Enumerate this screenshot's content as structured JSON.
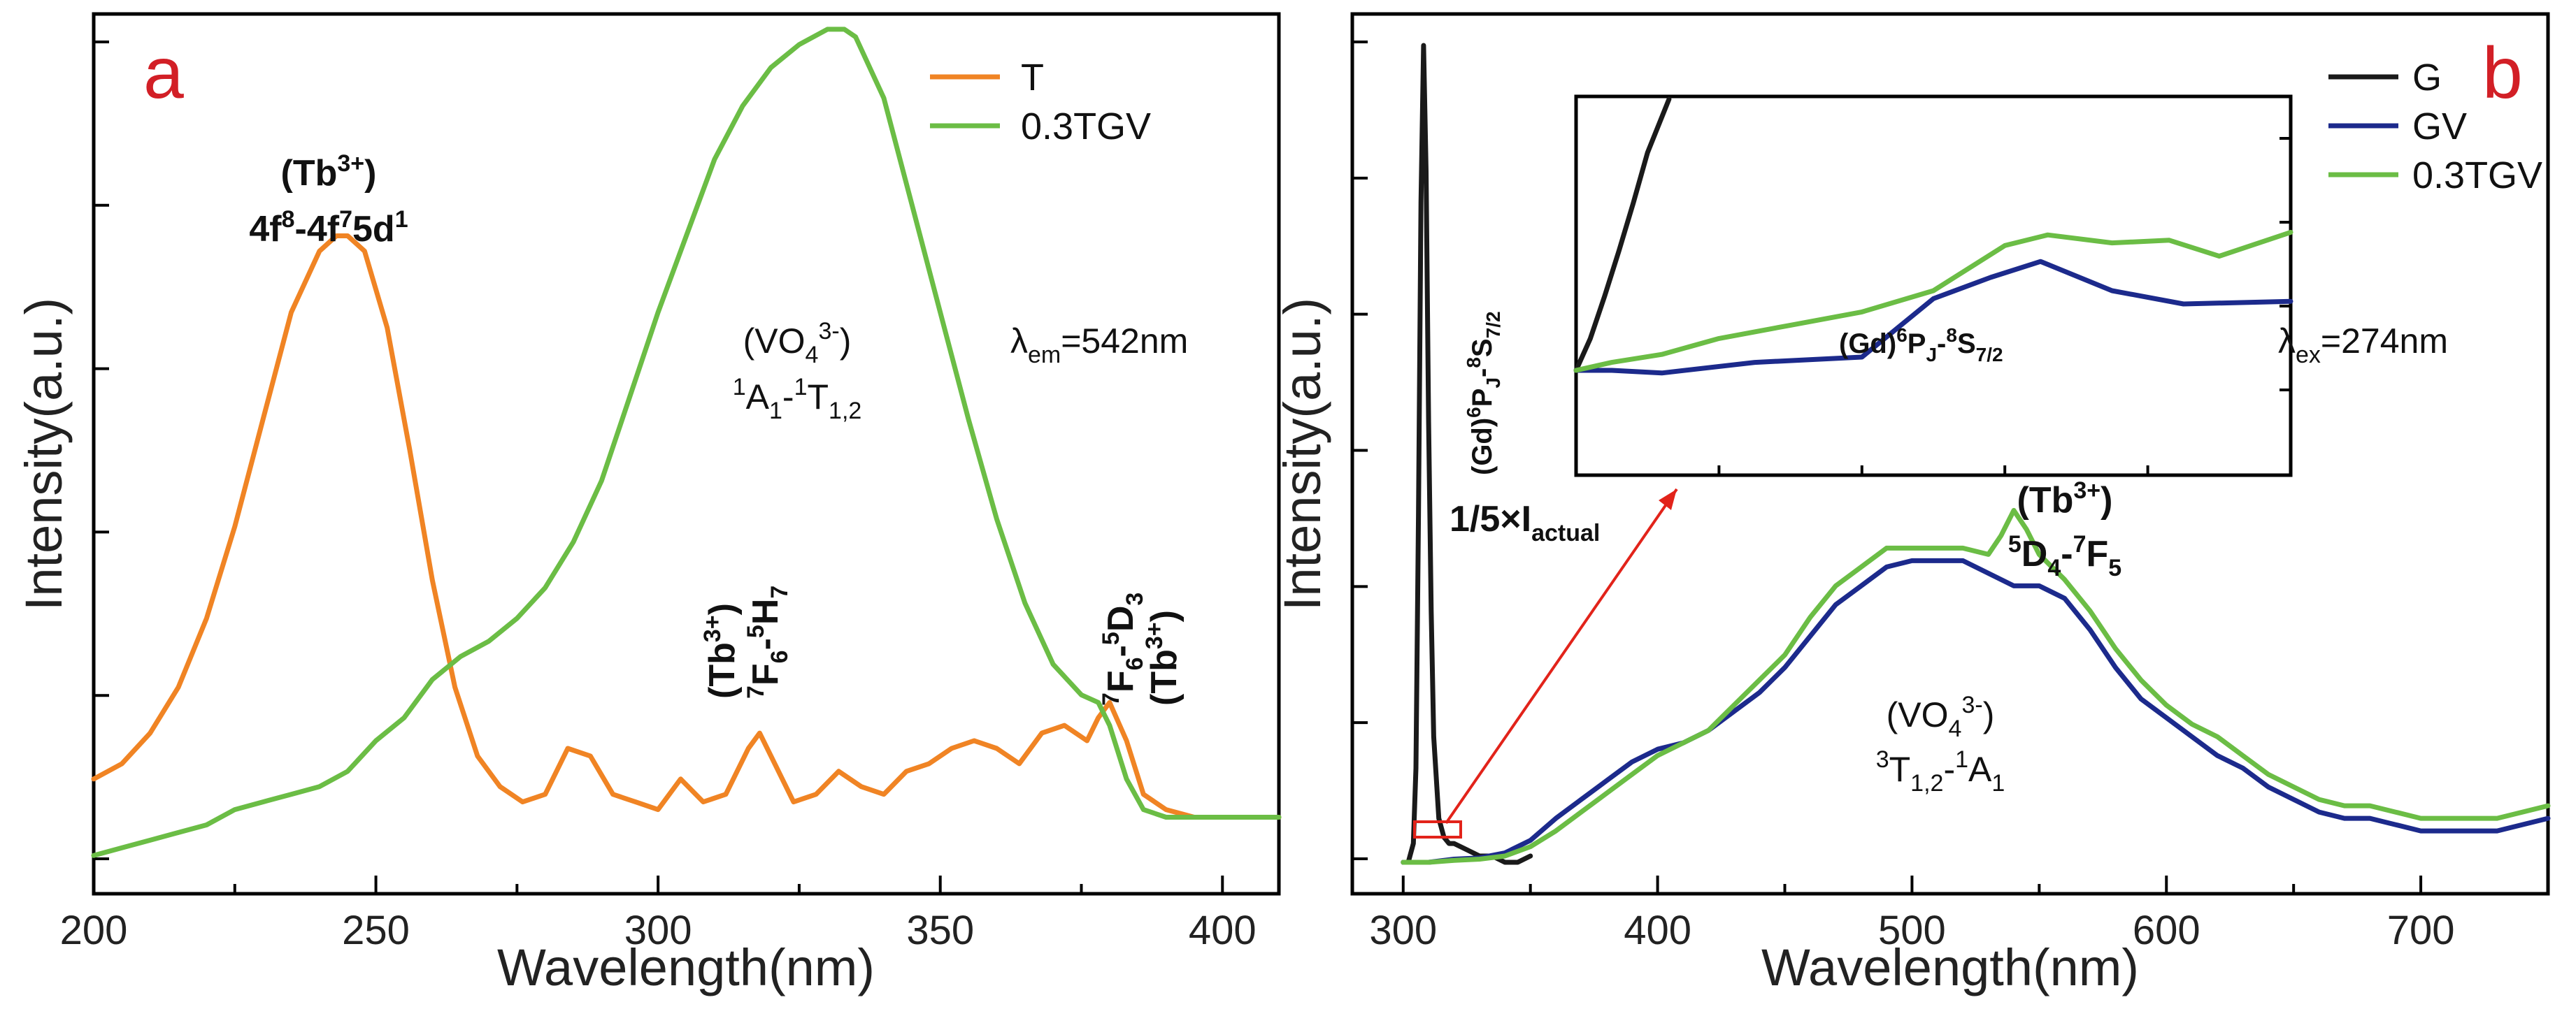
{
  "colors": {
    "T": "#f08424",
    "TGV": "#6bbd45",
    "G": "#1a1a1a",
    "GV": "#1c2a8c",
    "arrow": "#e2231a"
  },
  "chart_data": [
    {
      "panel": "a",
      "type": "line",
      "xlabel": "Wavelength(nm)",
      "ylabel": "Intensity(a.u.)",
      "xlim": [
        200,
        410
      ],
      "ylim": [
        -0.1,
        1.05
      ],
      "xticks": [
        200,
        250,
        300,
        350,
        400
      ],
      "xtick_labels": [
        "200",
        "250",
        "300",
        "350",
        "400"
      ],
      "legend": [
        "T",
        "0.3TGV"
      ],
      "series": [
        {
          "name": "T",
          "color": "#f08424",
          "x": [
            200,
            205,
            210,
            215,
            220,
            225,
            230,
            235,
            240,
            243,
            245,
            248,
            252,
            256,
            260,
            264,
            268,
            272,
            276,
            280,
            284,
            288,
            292,
            296,
            300,
            304,
            308,
            312,
            316,
            318,
            320,
            324,
            328,
            332,
            336,
            340,
            344,
            348,
            352,
            356,
            360,
            364,
            368,
            372,
            376,
            378,
            380,
            383,
            386,
            390,
            395,
            400,
            405,
            410
          ],
          "y": [
            0.05,
            0.07,
            0.11,
            0.17,
            0.26,
            0.38,
            0.52,
            0.66,
            0.74,
            0.76,
            0.76,
            0.74,
            0.64,
            0.48,
            0.31,
            0.17,
            0.08,
            0.04,
            0.02,
            0.03,
            0.09,
            0.08,
            0.03,
            0.02,
            0.01,
            0.05,
            0.02,
            0.03,
            0.09,
            0.11,
            0.08,
            0.02,
            0.03,
            0.06,
            0.04,
            0.03,
            0.06,
            0.07,
            0.09,
            0.1,
            0.09,
            0.07,
            0.11,
            0.12,
            0.1,
            0.13,
            0.15,
            0.1,
            0.03,
            0.01,
            0.0,
            0.0,
            0.0,
            0.0
          ]
        },
        {
          "name": "0.3TGV",
          "color": "#6bbd45",
          "x": [
            200,
            205,
            210,
            215,
            220,
            225,
            230,
            235,
            240,
            245,
            250,
            255,
            260,
            265,
            270,
            275,
            280,
            285,
            290,
            295,
            300,
            305,
            310,
            315,
            320,
            325,
            330,
            333,
            335,
            340,
            345,
            350,
            355,
            360,
            365,
            370,
            375,
            378,
            380,
            383,
            386,
            390,
            395,
            400,
            405,
            410
          ],
          "y": [
            -0.05,
            -0.04,
            -0.03,
            -0.02,
            -0.01,
            0.01,
            0.02,
            0.03,
            0.04,
            0.06,
            0.1,
            0.13,
            0.18,
            0.21,
            0.23,
            0.26,
            0.3,
            0.36,
            0.44,
            0.55,
            0.66,
            0.76,
            0.86,
            0.93,
            0.98,
            1.01,
            1.03,
            1.03,
            1.02,
            0.94,
            0.8,
            0.66,
            0.52,
            0.39,
            0.28,
            0.2,
            0.16,
            0.15,
            0.12,
            0.05,
            0.01,
            0.0,
            0.0,
            0.0,
            0.0,
            0.0
          ]
        }
      ],
      "annotations": [
        {
          "id": "tb-4f",
          "species": "(Tb",
          "species_sup": "3+",
          "species_end": ")",
          "line": "4f",
          "s1": "8",
          "mid": "-4f",
          "s2": "7",
          "end": "5d",
          "s3": "1"
        },
        {
          "id": "vo4-1",
          "species": "(VO",
          "sub": "4",
          "sup": "3-",
          "species_end": ")",
          "p1": "1",
          "t1": "A",
          "b1": "1",
          "t2": "-",
          "p2": "1",
          "t3": "T",
          "b2": "1,2"
        },
        {
          "id": "lambda-em",
          "sym": "λ",
          "sub": "em",
          "val": "=542nm"
        },
        {
          "id": "tb-7f6-5h7",
          "species": "(Tb",
          "sup": "3+",
          "end": ")",
          "p1": "7",
          "t1": "F",
          "b1": "6",
          "t2": "-",
          "p2": "5",
          "t3": "H",
          "b2": "7"
        },
        {
          "id": "tb-7f6-5d3",
          "p1": "7",
          "t1": "F",
          "b1": "6",
          "t2": "-",
          "p2": "5",
          "t3": "D",
          "b2": "3",
          "species": "(Tb",
          "sup": "3+",
          "end": ")"
        }
      ]
    },
    {
      "panel": "b",
      "type": "line",
      "xlabel": "Wavelength(nm)",
      "ylabel": "Intensity(a.u.)",
      "xlim": [
        280,
        750
      ],
      "ylim": [
        -0.05,
        1.35
      ],
      "xticks": [
        300,
        400,
        500,
        600,
        700
      ],
      "xtick_labels": [
        "300",
        "400",
        "500",
        "600",
        "700"
      ],
      "legend": [
        "G",
        "GV",
        "0.3TGV"
      ],
      "series": [
        {
          "name": "G",
          "color": "#1a1a1a",
          "x": [
            300,
            302,
            304,
            305,
            306,
            307,
            308,
            309,
            310,
            311,
            312,
            314,
            316,
            318,
            320,
            325,
            330,
            335,
            340,
            345,
            350
          ],
          "y": [
            0.0,
            0.0,
            0.03,
            0.15,
            0.55,
            1.05,
            1.3,
            1.1,
            0.7,
            0.4,
            0.2,
            0.07,
            0.04,
            0.03,
            0.03,
            0.02,
            0.01,
            0.01,
            0.0,
            0.0,
            0.01
          ]
        },
        {
          "name": "GV",
          "color": "#1c2a8c",
          "x": [
            300,
            310,
            320,
            330,
            340,
            350,
            360,
            370,
            380,
            390,
            400,
            410,
            420,
            430,
            440,
            450,
            460,
            470,
            480,
            490,
            500,
            510,
            520,
            530,
            540,
            550,
            560,
            570,
            580,
            590,
            600,
            610,
            620,
            630,
            640,
            650,
            660,
            670,
            680,
            690,
            700,
            710,
            720,
            730,
            740,
            750
          ],
          "y": [
            0.0,
            0.0,
            0.005,
            0.007,
            0.015,
            0.035,
            0.07,
            0.1,
            0.13,
            0.16,
            0.18,
            0.19,
            0.21,
            0.24,
            0.27,
            0.31,
            0.36,
            0.41,
            0.44,
            0.47,
            0.48,
            0.48,
            0.48,
            0.46,
            0.44,
            0.44,
            0.42,
            0.37,
            0.31,
            0.26,
            0.23,
            0.2,
            0.17,
            0.15,
            0.12,
            0.1,
            0.08,
            0.07,
            0.07,
            0.06,
            0.05,
            0.05,
            0.05,
            0.05,
            0.06,
            0.07
          ]
        },
        {
          "name": "0.3TGV",
          "color": "#6bbd45",
          "x": [
            300,
            310,
            320,
            330,
            340,
            350,
            360,
            370,
            380,
            390,
            400,
            410,
            420,
            430,
            440,
            450,
            460,
            470,
            480,
            490,
            500,
            510,
            520,
            530,
            535,
            540,
            545,
            550,
            560,
            570,
            580,
            590,
            600,
            610,
            620,
            630,
            640,
            650,
            660,
            670,
            680,
            690,
            700,
            710,
            720,
            730,
            740,
            750
          ],
          "y": [
            0.0,
            0.0,
            0.003,
            0.005,
            0.01,
            0.025,
            0.05,
            0.08,
            0.11,
            0.14,
            0.17,
            0.19,
            0.21,
            0.25,
            0.29,
            0.33,
            0.39,
            0.44,
            0.47,
            0.5,
            0.5,
            0.5,
            0.5,
            0.49,
            0.52,
            0.56,
            0.53,
            0.49,
            0.45,
            0.4,
            0.34,
            0.29,
            0.25,
            0.22,
            0.2,
            0.17,
            0.14,
            0.12,
            0.1,
            0.09,
            0.09,
            0.08,
            0.07,
            0.07,
            0.07,
            0.07,
            0.08,
            0.09
          ]
        }
      ],
      "annotations": [
        {
          "id": "g-scale",
          "text": "1/5×I",
          "sub": "actual"
        },
        {
          "id": "gd-6p-8s-vert",
          "species": "(Gd)",
          "p1": "6",
          "t1": "P",
          "b1": "J",
          "t2": "-",
          "p2": "8",
          "t3": "S",
          "b2": "7/2"
        },
        {
          "id": "tb-5d4-7f5",
          "species": "(Tb",
          "sup": "3+",
          "end": ")",
          "p1": "5",
          "t1": "D",
          "b1": "4",
          "t2": "-",
          "p2": "7",
          "t3": "F",
          "b2": "5"
        },
        {
          "id": "vo4-3",
          "species": "(VO",
          "sub": "4",
          "sup": "3-",
          "species_end": ")",
          "p1": "3",
          "t1": "T",
          "b1": "1,2",
          "t2": "-",
          "p2": "1",
          "t3": "A",
          "b2": "1"
        },
        {
          "id": "lambda-ex",
          "sym": "λ",
          "sub": "ex",
          "val": "=274nm"
        }
      ],
      "inset": {
        "annotation": {
          "species": "(Gd)",
          "p1": "6",
          "t1": "P",
          "b1": "J",
          "t2": "-",
          "p2": "8",
          "t3": "S",
          "b2": "7/2"
        },
        "series": [
          {
            "name": "G",
            "t": [
              0.0,
              0.02,
              0.04,
              0.06,
              0.08,
              0.1,
              0.13
            ],
            "v": [
              0.0,
              0.12,
              0.28,
              0.45,
              0.63,
              0.82,
              1.1
            ]
          },
          {
            "name": "GV",
            "t": [
              0.0,
              0.05,
              0.12,
              0.25,
              0.4,
              0.5,
              0.58,
              0.65,
              0.75,
              0.85,
              1.0
            ],
            "v": [
              0.0,
              0.0,
              -0.01,
              0.03,
              0.05,
              0.27,
              0.35,
              0.41,
              0.3,
              0.25,
              0.26
            ]
          },
          {
            "name": "0.3TGV",
            "t": [
              0.0,
              0.05,
              0.12,
              0.2,
              0.3,
              0.4,
              0.5,
              0.6,
              0.66,
              0.75,
              0.83,
              0.9,
              1.0
            ],
            "v": [
              0.0,
              0.03,
              0.06,
              0.12,
              0.17,
              0.22,
              0.3,
              0.47,
              0.51,
              0.48,
              0.49,
              0.43,
              0.52
            ]
          }
        ]
      }
    }
  ],
  "panel_tags": {
    "a": "a",
    "b": "b"
  }
}
